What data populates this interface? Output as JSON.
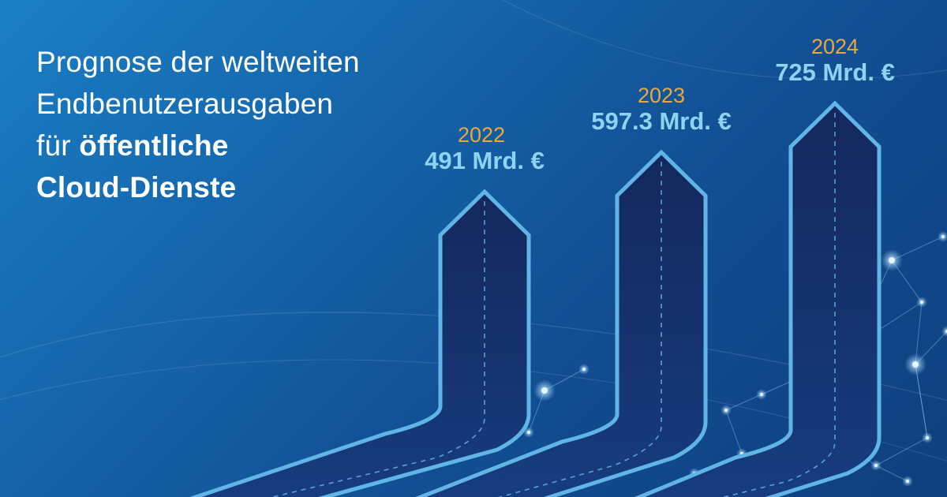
{
  "headline": {
    "line1": "Prognose der weltweiten",
    "line2": "Endbenutzerausgaben",
    "line3_prefix": "für ",
    "line3_bold": "öffentliche",
    "line4_bold": "Cloud-Dienste"
  },
  "chart_data": {
    "type": "bar",
    "categories": [
      "2022",
      "2023",
      "2024"
    ],
    "values": [
      491,
      597.3,
      725
    ],
    "value_labels": [
      "491 Mrd. €",
      "597.3 Mrd. €",
      "725 Mrd. €"
    ],
    "title": "",
    "xlabel": "",
    "ylabel": "",
    "grid": false,
    "legend": "none"
  },
  "colors": {
    "arrow_outline": "#5fb6e6",
    "arrow_fill": "#13306a",
    "year": "#e9a93a",
    "value": "#8fd3f2",
    "headline": "#ffffff"
  }
}
